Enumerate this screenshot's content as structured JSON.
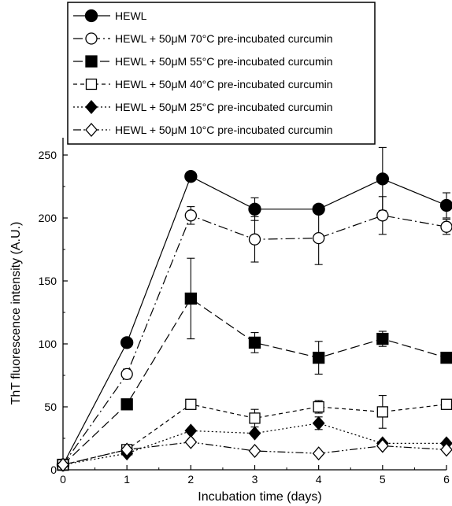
{
  "chart_data": {
    "type": "line",
    "title": "",
    "xlabel": "Incubation time (days)",
    "ylabel": "ThT fluorescence intensity (A.U.)",
    "xlim": [
      0,
      6
    ],
    "ylim": [
      0,
      260
    ],
    "x": [
      0,
      1,
      2,
      3,
      4,
      5,
      6
    ],
    "xticks": [
      "0",
      "1",
      "2",
      "3",
      "4",
      "5",
      "6"
    ],
    "yticks": [
      "0",
      "50",
      "100",
      "150",
      "200",
      "250"
    ],
    "grid": false,
    "legend_position": "top-left",
    "series": [
      {
        "name": "HEWL",
        "marker": "circle-filled",
        "line_style": "solid",
        "values": [
          4,
          101,
          233,
          207,
          207,
          231,
          210
        ],
        "errors": [
          0,
          0,
          0,
          9,
          0,
          25,
          10
        ]
      },
      {
        "name": "HEWL + 50μM 70°C pre-incubated curcumin",
        "marker": "circle-open",
        "line_style": "dash-dot",
        "values": [
          4,
          76,
          202,
          183,
          184,
          202,
          193
        ],
        "errors": [
          0,
          4,
          7,
          18,
          21,
          15,
          6
        ]
      },
      {
        "name": "HEWL + 50μM 55°C pre-incubated curcumin",
        "marker": "square-filled",
        "line_style": "long-dash",
        "values": [
          4,
          52,
          136,
          101,
          89,
          104,
          89
        ],
        "errors": [
          0,
          0,
          32,
          8,
          13,
          6,
          0
        ]
      },
      {
        "name": "HEWL + 50μM 40°C pre-incubated curcumin",
        "marker": "square-open",
        "line_style": "short-dash",
        "values": [
          4,
          16,
          52,
          41,
          50,
          46,
          52
        ],
        "errors": [
          0,
          0,
          3,
          7,
          5,
          13,
          0
        ]
      },
      {
        "name": "HEWL + 50μM 25°C pre-incubated curcumin",
        "marker": "diamond-filled",
        "line_style": "dotted",
        "values": [
          4,
          13,
          31,
          29,
          37,
          21,
          21
        ],
        "errors": [
          0,
          0,
          0,
          0,
          5,
          0,
          0
        ]
      },
      {
        "name": "HEWL + 50μM 10°C pre-incubated curcumin",
        "marker": "diamond-open",
        "line_style": "dash-dot-dot",
        "values": [
          4,
          16,
          22,
          15,
          13,
          19,
          16
        ],
        "errors": [
          0,
          0,
          0,
          0,
          0,
          0,
          0
        ]
      }
    ]
  }
}
